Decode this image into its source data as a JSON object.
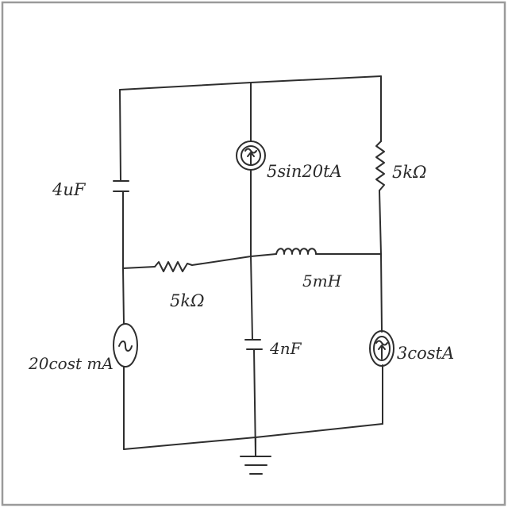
{
  "diagram": {
    "type": "circuit-schematic",
    "style": "hand-drawn",
    "components": [
      {
        "kind": "capacitor",
        "label": "4uF"
      },
      {
        "kind": "ac-current-source",
        "label": "5sin20tA"
      },
      {
        "kind": "resistor",
        "label": "5kΩ"
      },
      {
        "kind": "resistor",
        "label": "5kΩ"
      },
      {
        "kind": "inductor",
        "label": "5mH"
      },
      {
        "kind": "ac-voltage-source",
        "label": "20cost mA"
      },
      {
        "kind": "capacitor",
        "label": "4nF"
      },
      {
        "kind": "ac-current-source",
        "label": "3costA"
      },
      {
        "kind": "ground",
        "label": ""
      }
    ],
    "labels": {
      "cap_left": "4uF",
      "src_middle": "5sin20tA",
      "res_right": "5kΩ",
      "res_middle": "5kΩ",
      "inductor": "5mH",
      "src_left": "20cost mA",
      "cap_middle": "4nF",
      "src_right": "3costA"
    }
  }
}
